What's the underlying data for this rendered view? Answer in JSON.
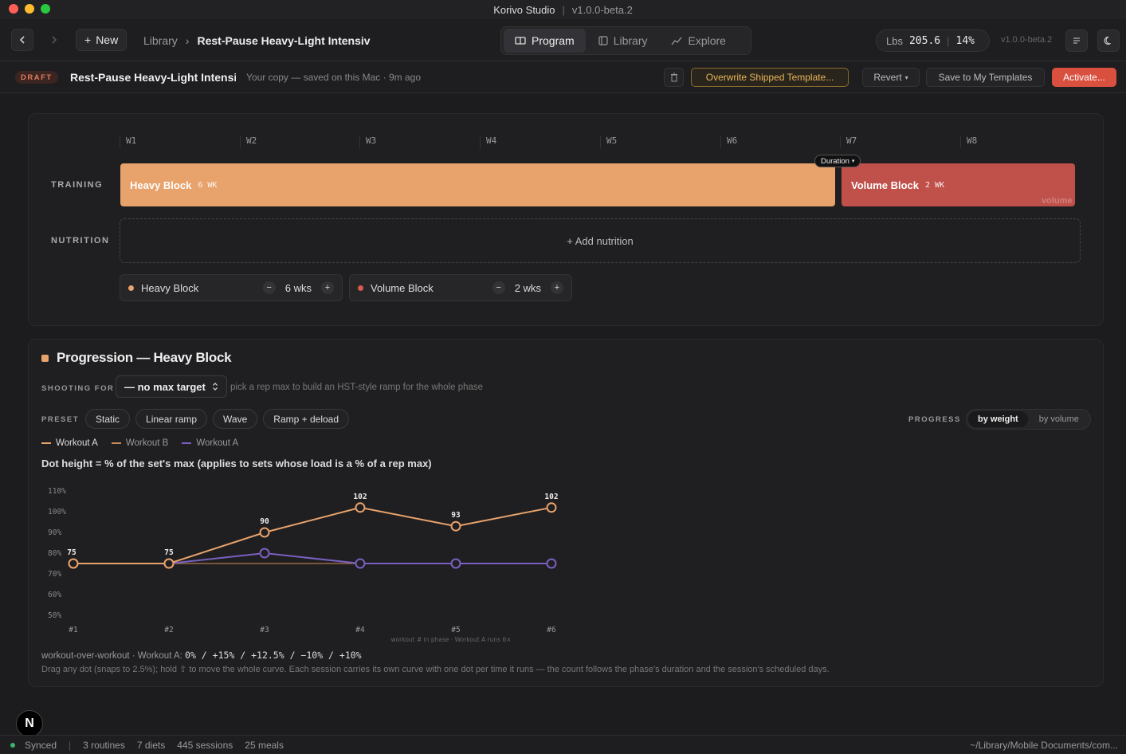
{
  "window": {
    "app_name": "Korivo Studio",
    "version": "v1.0.0-beta.2"
  },
  "toolbar": {
    "back_icon": "chevron-left-icon",
    "forward_icon": "chevron-right-icon",
    "new_label": "New",
    "crumb_root": "Library",
    "crumb_current": "Rest-Pause Heavy-Light Intensiv",
    "tabs": [
      {
        "label": "Program",
        "icon": "book-icon",
        "active": true
      },
      {
        "label": "Library",
        "icon": "panel-icon",
        "active": false
      },
      {
        "label": "Explore",
        "icon": "trend-icon",
        "active": false
      }
    ],
    "unit": "Lbs",
    "weight": "205.6",
    "bodyfat": "14%",
    "version_tag": "v1.0.0-beta.2"
  },
  "draft": {
    "badge": "DRAFT",
    "name": "Rest-Pause Heavy-Light Intensiv",
    "saved": "Your copy — saved on this Mac · 9m ago",
    "overwrite": "Overwrite Shipped Template...",
    "revert": "Revert",
    "save_template": "Save to My Templates",
    "activate": "Activate..."
  },
  "timeline": {
    "weeks": [
      "W1",
      "W2",
      "W3",
      "W4",
      "W5",
      "W6",
      "W7",
      "W8"
    ],
    "training_label": "TRAINING",
    "nutrition_label": "NUTRITION",
    "duration_tip": "Duration",
    "blocks": [
      {
        "name": "Heavy Block",
        "weeks_label": "6 WK",
        "color": "#e8a26b"
      },
      {
        "name": "Volume Block",
        "weeks_label": "2 WK",
        "color": "#c0504a",
        "watermark": "volume"
      }
    ],
    "add_nutrition": "+ Add nutrition",
    "steppers": [
      {
        "name": "Heavy Block",
        "value": "6 wks",
        "color": "#e8a26b"
      },
      {
        "name": "Volume Block",
        "value": "2 wks",
        "color": "#d65b4b"
      }
    ]
  },
  "progression": {
    "title": "Progression — Heavy Block",
    "shooting_label": "SHOOTING FOR",
    "shooting_value": "— no max target",
    "hint": "pick a rep max to build an HST-style ramp for the whole phase",
    "preset_label": "PRESET",
    "presets": [
      "Static",
      "Linear ramp",
      "Wave",
      "Ramp + deload"
    ],
    "progress_label": "PROGRESS",
    "progress_options": [
      "by weight",
      "by volume"
    ],
    "legend": [
      {
        "name": "Workout A",
        "color": "#e8a26b"
      },
      {
        "name": "Workout B",
        "color": "#c88a55"
      },
      {
        "name": "Workout A",
        "color": "#7a5fc0"
      }
    ],
    "caption": "Dot height = % of the set's max (applies to sets whose load is a % of a rep max)",
    "wow_label": "workout-over-workout · Workout A:",
    "wow_values": "0% / +15% / +12.5% / −10% / +10%",
    "drag_hint": "Drag any dot (snaps to 2.5%); hold ⇧ to move the whole curve. Each session carries its own curve with one dot per time it runs — the count follows the phase's duration and the session's scheduled days."
  },
  "chart_data": {
    "type": "line",
    "categories": [
      "#1",
      "#2",
      "#3",
      "#4",
      "#5",
      "#6"
    ],
    "x_note": "workout # in phase · Workout A runs 6×",
    "y_ticks": [
      "110%",
      "100%",
      "90%",
      "80%",
      "70%",
      "60%",
      "50%"
    ],
    "ylim": [
      50,
      110
    ],
    "series": [
      {
        "name": "Workout A",
        "color": "#e8a26b",
        "values": [
          75,
          75,
          90,
          102,
          93,
          102
        ],
        "labels": [
          "75",
          "75",
          "90",
          "102",
          "93",
          "102"
        ]
      },
      {
        "name": "Workout B",
        "color": "#c88a55",
        "values": [
          75,
          75,
          75,
          75,
          75,
          75
        ]
      },
      {
        "name": "Workout A",
        "color": "#7a5fc0",
        "values": [
          75,
          75,
          80,
          75,
          75,
          75
        ]
      }
    ]
  },
  "status": {
    "sync": "Synced",
    "routines": "3 routines",
    "diets": "7 diets",
    "sessions": "445 sessions",
    "meals": "25 meals",
    "path": "~/Library/Mobile Documents/com..."
  }
}
